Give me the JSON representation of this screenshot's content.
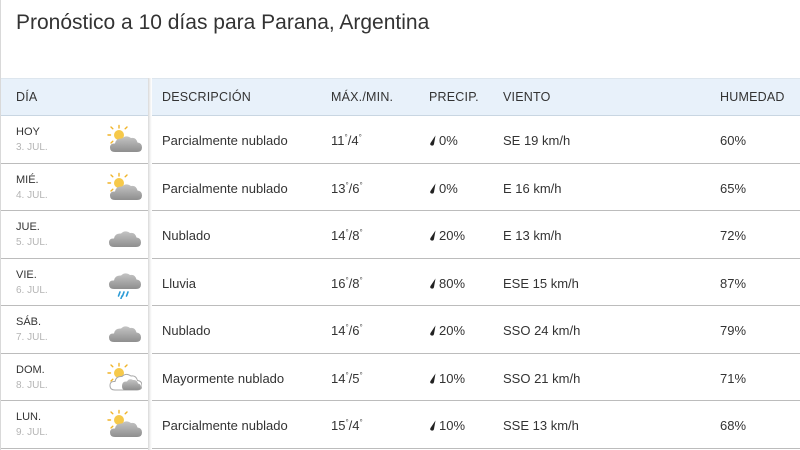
{
  "title": "Pronóstico a 10 días para Parana, Argentina",
  "headers": {
    "day": "DÍA",
    "description": "DESCRIPCIÓN",
    "maxmin": "MÁX./MIN.",
    "precip": "PRECIP.",
    "wind": "VIENTO",
    "humidity": "HUMEDAD"
  },
  "rows": [
    {
      "day": "HOY",
      "date": "3. JUL.",
      "icon": "partly-cloudy-icon",
      "desc": "Parcialmente nublado",
      "max": "11",
      "min": "4",
      "precip": "0%",
      "wind": "SE 19 km/h",
      "humidity": "60%"
    },
    {
      "day": "MIÉ.",
      "date": "4. JUL.",
      "icon": "partly-cloudy-icon",
      "desc": "Parcialmente nublado",
      "max": "13",
      "min": "6",
      "precip": "0%",
      "wind": "E 16 km/h",
      "humidity": "65%"
    },
    {
      "day": "JUE.",
      "date": "5. JUL.",
      "icon": "cloudy-icon",
      "desc": "Nublado",
      "max": "14",
      "min": "8",
      "precip": "20%",
      "wind": "E 13 km/h",
      "humidity": "72%"
    },
    {
      "day": "VIE.",
      "date": "6. JUL.",
      "icon": "rain-icon",
      "desc": "Lluvia",
      "max": "16",
      "min": "8",
      "precip": "80%",
      "wind": "ESE 15 km/h",
      "humidity": "87%"
    },
    {
      "day": "SÁB.",
      "date": "7. JUL.",
      "icon": "cloudy-icon",
      "desc": "Nublado",
      "max": "14",
      "min": "6",
      "precip": "20%",
      "wind": "SSO 24 km/h",
      "humidity": "79%"
    },
    {
      "day": "DOM.",
      "date": "8. JUL.",
      "icon": "mostly-cloudy-icon",
      "desc": "Mayormente nublado",
      "max": "14",
      "min": "5",
      "precip": "10%",
      "wind": "SSO 21 km/h",
      "humidity": "71%"
    },
    {
      "day": "LUN.",
      "date": "9. JUL.",
      "icon": "partly-cloudy-icon",
      "desc": "Parcialmente nublado",
      "max": "15",
      "min": "4",
      "precip": "10%",
      "wind": "SSE 13 km/h",
      "humidity": "68%"
    }
  ],
  "degree_symbol": "°",
  "temp_separator": "/"
}
